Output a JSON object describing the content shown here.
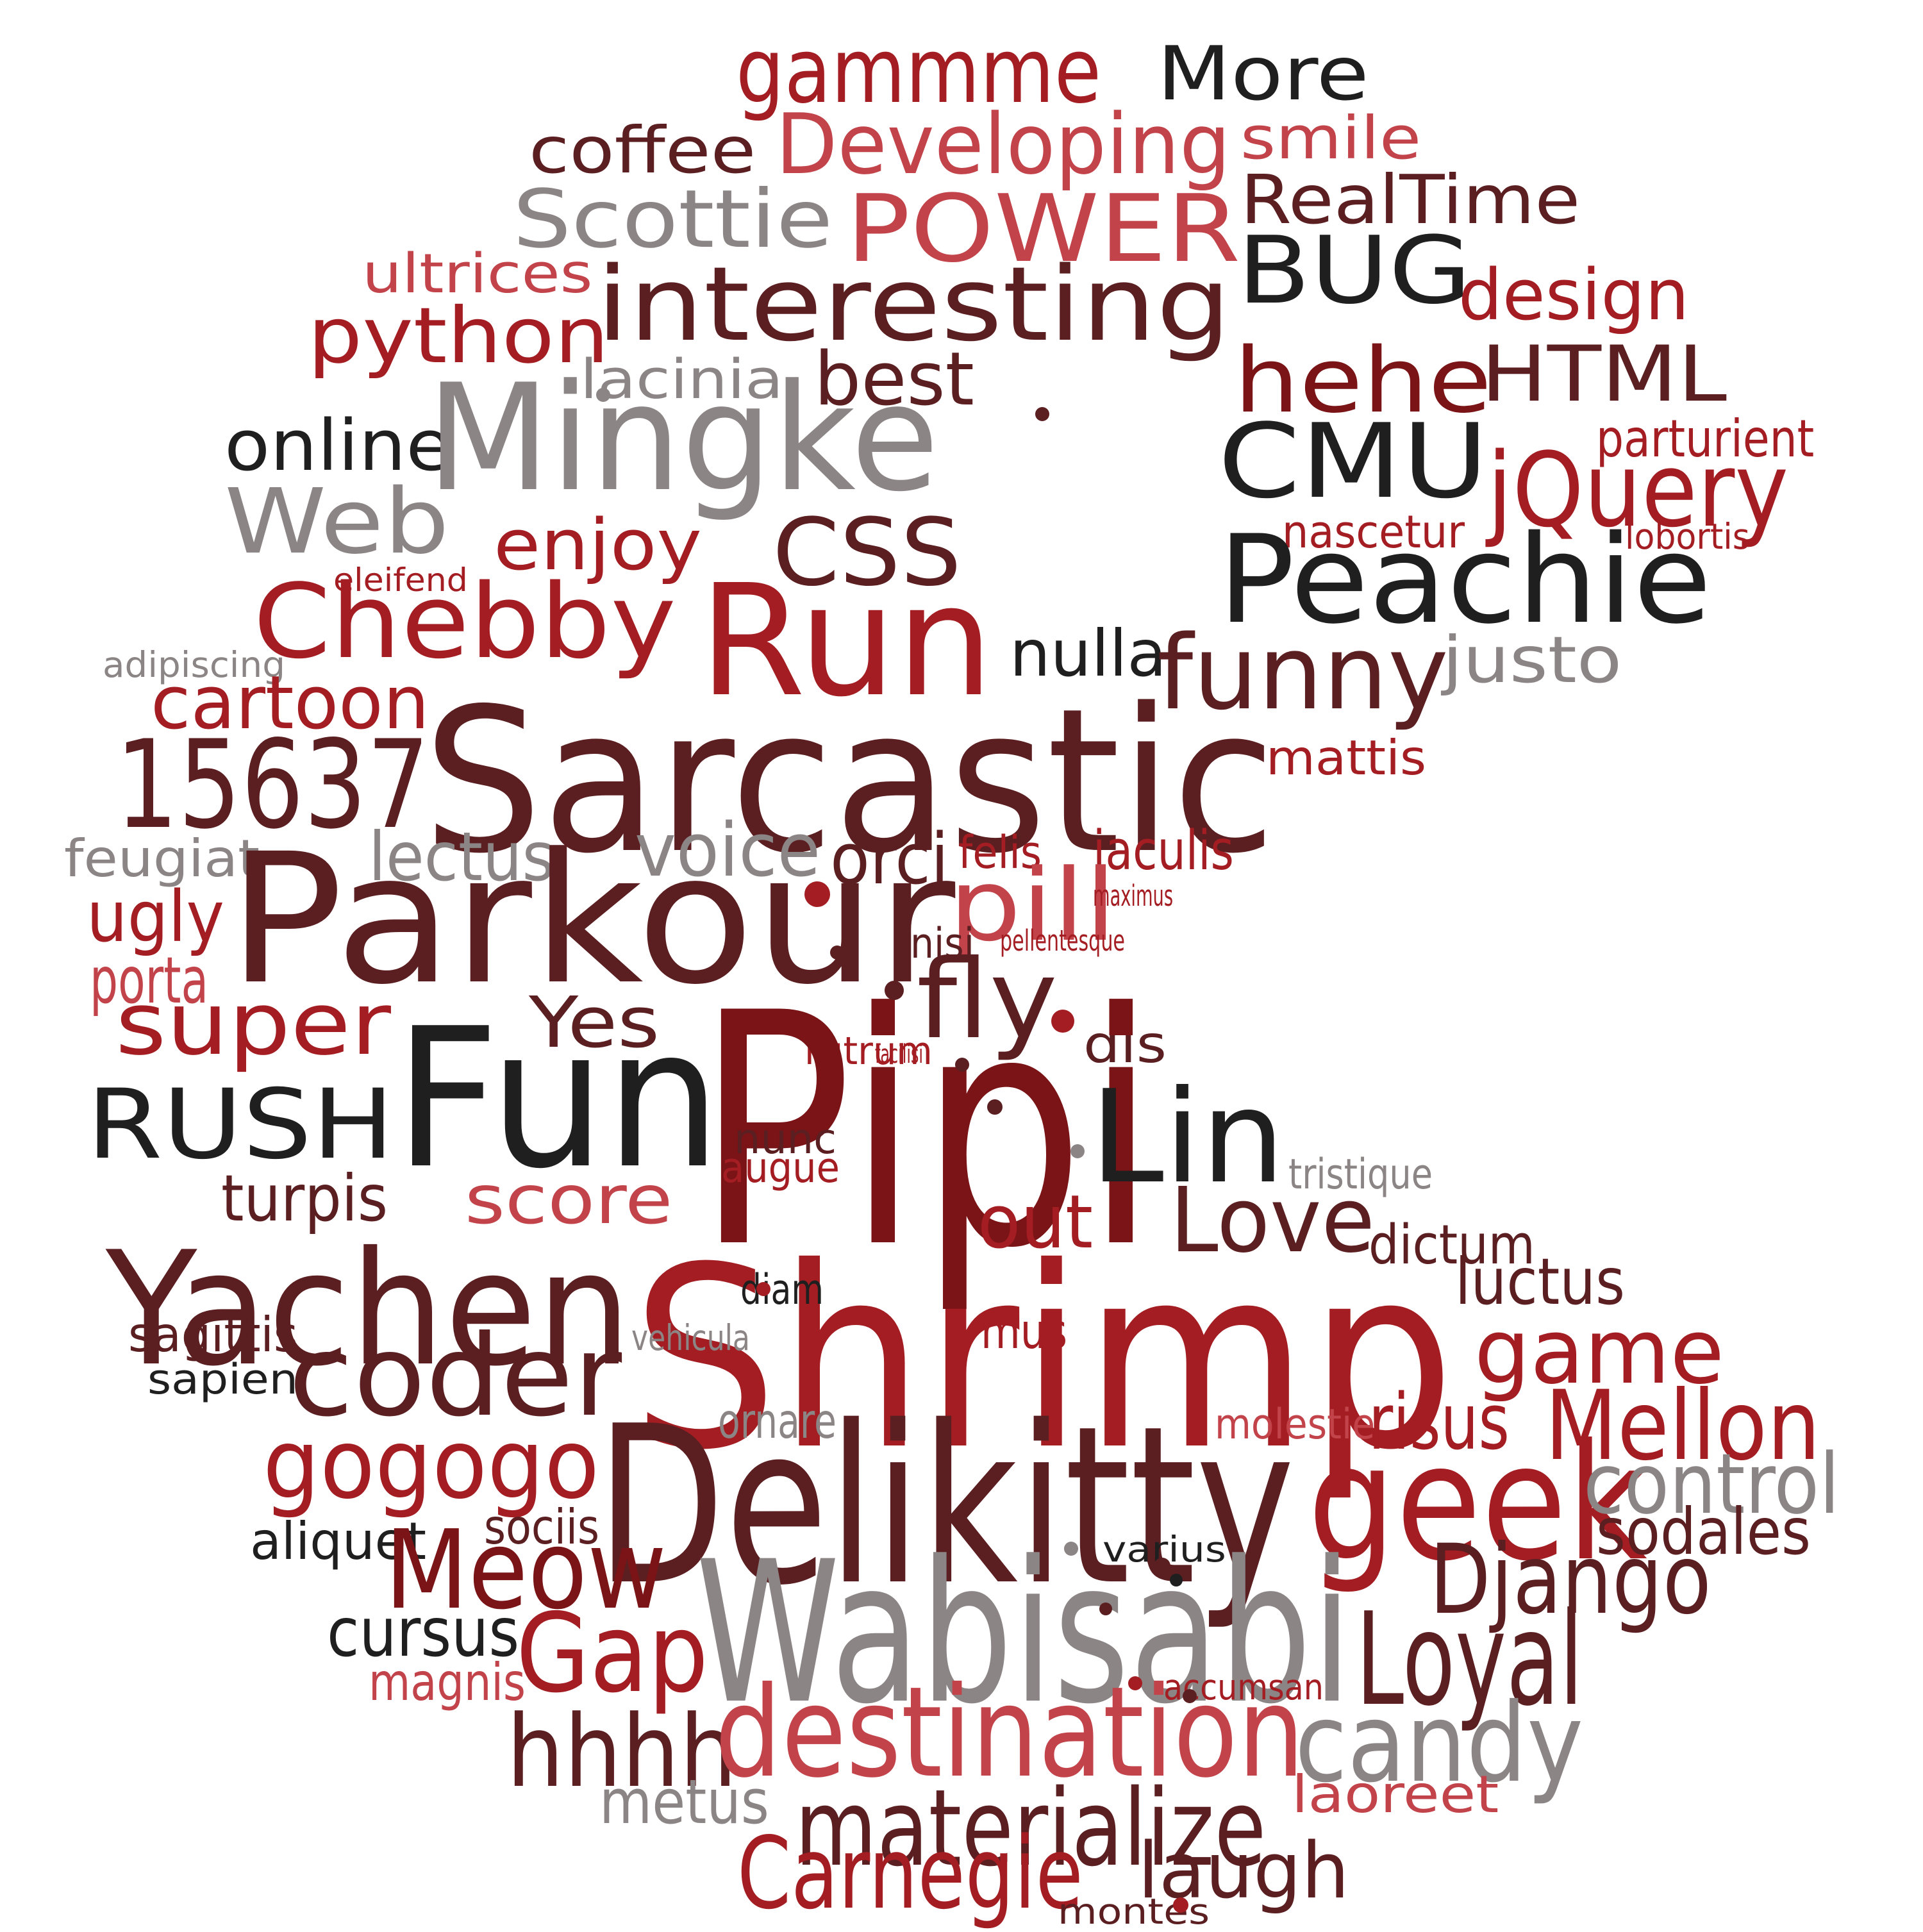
{
  "palette": {
    "dark": "#1f1f1f",
    "maroon": "#5b1f22",
    "wine": "#7a1416",
    "red": "#a31d22",
    "rose": "#c2434a",
    "grey": "#8c8585"
  },
  "words": [
    {
      "text": "gammme",
      "color": "red"
    },
    {
      "text": "More",
      "color": "dark"
    },
    {
      "text": "coffee",
      "color": "maroon"
    },
    {
      "text": "Developing",
      "color": "rose"
    },
    {
      "text": "smile",
      "color": "rose"
    },
    {
      "text": "Scottie",
      "color": "grey"
    },
    {
      "text": "POWER",
      "color": "rose"
    },
    {
      "text": "RealTime",
      "color": "maroon"
    },
    {
      "text": "ultrices",
      "color": "rose"
    },
    {
      "text": "BUG",
      "color": "dark"
    },
    {
      "text": "design",
      "color": "red"
    },
    {
      "text": "interesting",
      "color": "maroon"
    },
    {
      "text": "python",
      "color": "red"
    },
    {
      "text": "hehe",
      "color": "wine"
    },
    {
      "text": "HTML",
      "color": "maroon"
    },
    {
      "text": "lacinia",
      "color": "grey"
    },
    {
      "text": "best",
      "color": "maroon"
    },
    {
      "text": "online",
      "color": "dark"
    },
    {
      "text": "Mingke",
      "color": "grey"
    },
    {
      "text": "CMU",
      "color": "dark"
    },
    {
      "text": "parturient",
      "color": "red"
    },
    {
      "text": "jQuery",
      "color": "red"
    },
    {
      "text": "Web",
      "color": "grey"
    },
    {
      "text": "enjoy",
      "color": "red"
    },
    {
      "text": "CSS",
      "color": "maroon"
    },
    {
      "text": "nascetur",
      "color": "red"
    },
    {
      "text": "lobortis",
      "color": "red"
    },
    {
      "text": "Peachie",
      "color": "dark"
    },
    {
      "text": "eleifend",
      "color": "red"
    },
    {
      "text": "Chebby",
      "color": "red"
    },
    {
      "text": "Run",
      "color": "red"
    },
    {
      "text": "adipiscing",
      "color": "grey"
    },
    {
      "text": "nulla",
      "color": "dark"
    },
    {
      "text": "funny",
      "color": "maroon"
    },
    {
      "text": "justo",
      "color": "grey"
    },
    {
      "text": "cartoon",
      "color": "red"
    },
    {
      "text": "15637",
      "color": "maroon"
    },
    {
      "text": "Sarcastic",
      "color": "maroon"
    },
    {
      "text": "mattis",
      "color": "red"
    },
    {
      "text": "feugiat",
      "color": "grey"
    },
    {
      "text": "lectus",
      "color": "grey"
    },
    {
      "text": "voice",
      "color": "grey"
    },
    {
      "text": "orci",
      "color": "maroon"
    },
    {
      "text": "felis",
      "color": "red"
    },
    {
      "text": "iaculis",
      "color": "red"
    },
    {
      "text": "Parkour",
      "color": "maroon"
    },
    {
      "text": "pill",
      "color": "rose"
    },
    {
      "text": "maximus",
      "color": "red"
    },
    {
      "text": "ugly",
      "color": "red"
    },
    {
      "text": "nisi",
      "color": "maroon"
    },
    {
      "text": "pellentesque",
      "color": "red"
    },
    {
      "text": "porta",
      "color": "rose"
    },
    {
      "text": "super",
      "color": "red"
    },
    {
      "text": "Yes",
      "color": "maroon"
    },
    {
      "text": "fly",
      "color": "maroon"
    },
    {
      "text": "rutrum",
      "color": "red"
    },
    {
      "text": "facilisi",
      "color": "red"
    },
    {
      "text": "dis",
      "color": "maroon"
    },
    {
      "text": "Fun",
      "color": "dark"
    },
    {
      "text": "Pipi",
      "color": "wine"
    },
    {
      "text": "RUSH",
      "color": "dark"
    },
    {
      "text": "Lin",
      "color": "dark"
    },
    {
      "text": "nunc",
      "color": "maroon"
    },
    {
      "text": "augue",
      "color": "red"
    },
    {
      "text": "tristique",
      "color": "grey"
    },
    {
      "text": "turpis",
      "color": "maroon"
    },
    {
      "text": "score",
      "color": "rose"
    },
    {
      "text": "out",
      "color": "red"
    },
    {
      "text": "Love",
      "color": "maroon"
    },
    {
      "text": "dictum",
      "color": "maroon"
    },
    {
      "text": "Yachen",
      "color": "maroon"
    },
    {
      "text": "Shrimp",
      "color": "red"
    },
    {
      "text": "diam",
      "color": "dark"
    },
    {
      "text": "luctus",
      "color": "maroon"
    },
    {
      "text": "sagittis",
      "color": "maroon"
    },
    {
      "text": "vehicula",
      "color": "grey"
    },
    {
      "text": "mus",
      "color": "red"
    },
    {
      "text": "game",
      "color": "red"
    },
    {
      "text": "sapien",
      "color": "dark"
    },
    {
      "text": "coder",
      "color": "maroon"
    },
    {
      "text": "ornare",
      "color": "grey"
    },
    {
      "text": "molestie",
      "color": "rose"
    },
    {
      "text": "risus",
      "color": "red"
    },
    {
      "text": "Mellon",
      "color": "red"
    },
    {
      "text": "gogogo",
      "color": "red"
    },
    {
      "text": "Delikitty",
      "color": "maroon"
    },
    {
      "text": "geek",
      "color": "red"
    },
    {
      "text": "control",
      "color": "grey"
    },
    {
      "text": "aliquet",
      "color": "dark"
    },
    {
      "text": "sociis",
      "color": "maroon"
    },
    {
      "text": "varius",
      "color": "dark"
    },
    {
      "text": "sodales",
      "color": "maroon"
    },
    {
      "text": "Meow",
      "color": "wine"
    },
    {
      "text": "Django",
      "color": "maroon"
    },
    {
      "text": "Wabisabi",
      "color": "grey"
    },
    {
      "text": "cursus",
      "color": "dark"
    },
    {
      "text": "magnis",
      "color": "rose"
    },
    {
      "text": "Gap",
      "color": "red"
    },
    {
      "text": "accumsan",
      "color": "red"
    },
    {
      "text": "Loyal",
      "color": "maroon"
    },
    {
      "text": "hhhh",
      "color": "maroon"
    },
    {
      "text": "destination",
      "color": "rose"
    },
    {
      "text": "candy",
      "color": "grey"
    },
    {
      "text": "metus",
      "color": "grey"
    },
    {
      "text": "materialize",
      "color": "maroon"
    },
    {
      "text": "laoreet",
      "color": "rose"
    },
    {
      "text": "Carnegie",
      "color": "red"
    },
    {
      "text": "laugh",
      "color": "maroon"
    },
    {
      "text": "montes",
      "color": "maroon"
    }
  ],
  "dots": [
    {
      "color": "grey"
    },
    {
      "color": "maroon"
    },
    {
      "color": "red"
    },
    {
      "color": "maroon"
    },
    {
      "color": "red"
    },
    {
      "color": "maroon"
    },
    {
      "color": "grey"
    },
    {
      "color": "maroon"
    },
    {
      "color": "red"
    },
    {
      "color": "red"
    },
    {
      "color": "maroon"
    },
    {
      "color": "red"
    },
    {
      "color": "maroon"
    },
    {
      "color": "grey"
    },
    {
      "color": "maroon"
    },
    {
      "color": "maroon"
    },
    {
      "color": "dark"
    }
  ]
}
